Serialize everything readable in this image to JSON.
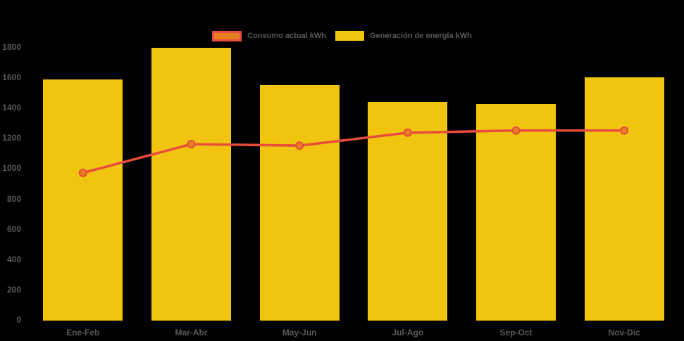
{
  "legend": {
    "items": [
      {
        "label": "Consumo actual kWh",
        "swatch": "line-swatch"
      },
      {
        "label": "Generación de energía kWh",
        "swatch": "bar-swatch"
      }
    ]
  },
  "colors": {
    "background": "#000000",
    "axis_text": "#595959",
    "bar_yellow": "#f1c40f",
    "line_red": "#e74c3c",
    "marker_orange": "#e67e22"
  },
  "chart_data": {
    "type": "bar",
    "subtype": "bar-with-line-overlay",
    "title": "",
    "xlabel": "",
    "ylabel": "",
    "categories": [
      "Ene-Feb",
      "Mar-Abr",
      "May-Jun",
      "Jul-Ago",
      "Sep-Oct",
      "Nov-Dic"
    ],
    "series": [
      {
        "name": "Consumo actual kWh",
        "type": "line",
        "color": "#e74c3c",
        "marker_fill": "#e67e22",
        "values": [
          970,
          1160,
          1150,
          1235,
          1250,
          1250
        ]
      },
      {
        "name": "Generación de energía kWh",
        "type": "bar",
        "color": "#f1c40f",
        "values": [
          1585,
          1795,
          1550,
          1440,
          1425,
          1600
        ]
      }
    ],
    "ylim": [
      0,
      1800
    ],
    "yticks": [
      0,
      200,
      400,
      600,
      800,
      1000,
      1200,
      1400,
      1600,
      1800
    ],
    "grid": false,
    "legend_position": "top-center"
  }
}
